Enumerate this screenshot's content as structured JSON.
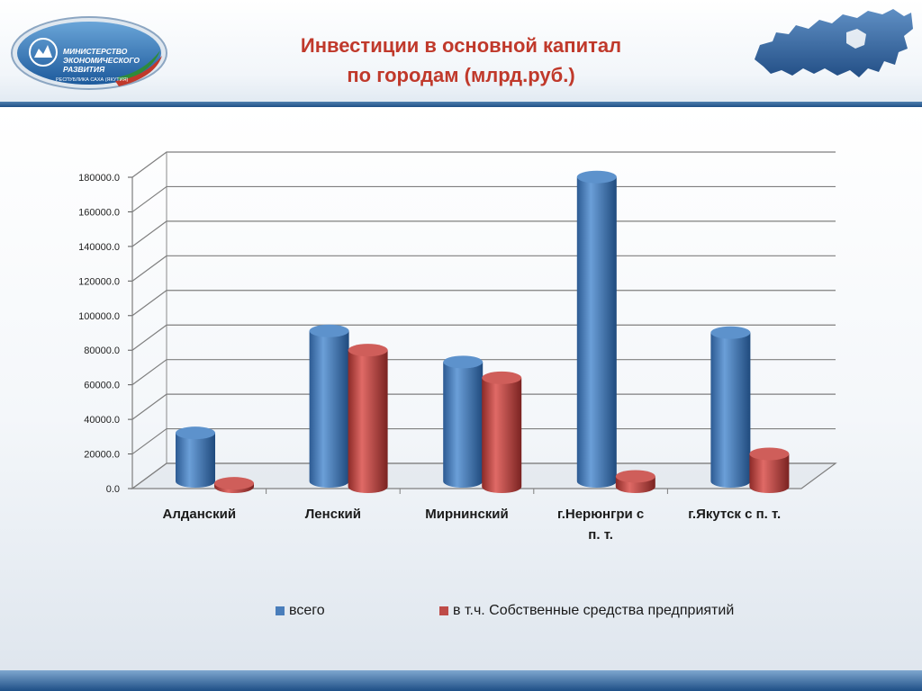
{
  "header": {
    "title_line1": "Инвестиции в основной капитал",
    "title_line2": "по городам (млрд.руб.)"
  },
  "logo": {
    "icon": "ministry-emblem-icon",
    "text_line1": "Министерство",
    "text_line2": "Экономического",
    "text_line3": "Развития",
    "subtitle": "РЕСПУБЛИКА САХА (ЯКУТИЯ)"
  },
  "map": {
    "icon": "russia-map-icon"
  },
  "colors": {
    "title": "#c0392b",
    "series1": "#4a7ebb",
    "series2": "#be4b48",
    "header_line": "#2a5a92"
  },
  "chart_data": {
    "type": "bar",
    "categories": [
      [
        "Алданский"
      ],
      [
        "Ленский"
      ],
      [
        "Мирнинский"
      ],
      [
        "г.Нерюнгри с",
        "п. т."
      ],
      [
        "г.Якутск с п. т."
      ]
    ],
    "series": [
      {
        "name": "всего",
        "values": [
          28000,
          87000,
          69000,
          176000,
          86000
        ]
      },
      {
        "name": "в т.ч. Собственные средства предприятий",
        "values": [
          2000,
          79000,
          63000,
          6000,
          19000
        ]
      }
    ],
    "ylim": [
      0,
      180000
    ],
    "y_ticks": [
      {
        "value": 0,
        "label": "0.0"
      },
      {
        "value": 20000,
        "label": "20000.0"
      },
      {
        "value": 40000,
        "label": "40000.0"
      },
      {
        "value": 60000,
        "label": "60000.0"
      },
      {
        "value": 80000,
        "label": "80000.0"
      },
      {
        "value": 100000,
        "label": "100000.0"
      },
      {
        "value": 120000,
        "label": "120000.0"
      },
      {
        "value": 140000,
        "label": "140000.0"
      },
      {
        "value": 160000,
        "label": "160000.0"
      },
      {
        "value": 180000,
        "label": "180000.0"
      }
    ],
    "grid": true,
    "legend_position": "bottom",
    "style": "3d-cylinder"
  }
}
